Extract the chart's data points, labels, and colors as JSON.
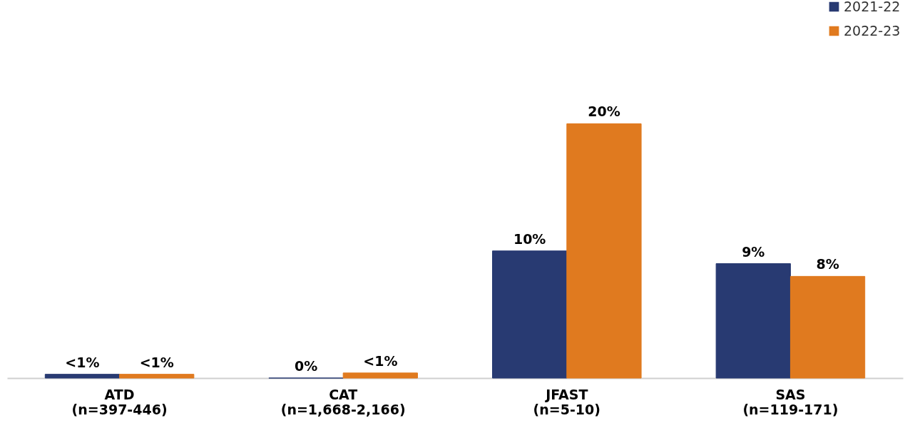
{
  "chart_data": {
    "type": "bar",
    "categories": [
      "ATD\n(n=397-446)",
      "CAT\n(n=1,668-2,166)",
      "JFAST\n(n=5-10)",
      "SAS\n(n=119-171)"
    ],
    "series": [
      {
        "name": "2021-22",
        "color": "#283a72",
        "values": [
          0.3,
          0,
          10,
          9
        ],
        "value_labels": [
          "<1%",
          "0%",
          "10%",
          "9%"
        ]
      },
      {
        "name": "2022-23",
        "color": "#e07a1f",
        "values": [
          0.3,
          0.4,
          20,
          8
        ],
        "value_labels": [
          "<1%",
          "<1%",
          "20%",
          "8%"
        ]
      }
    ],
    "legend": "top right",
    "grid": false
  }
}
